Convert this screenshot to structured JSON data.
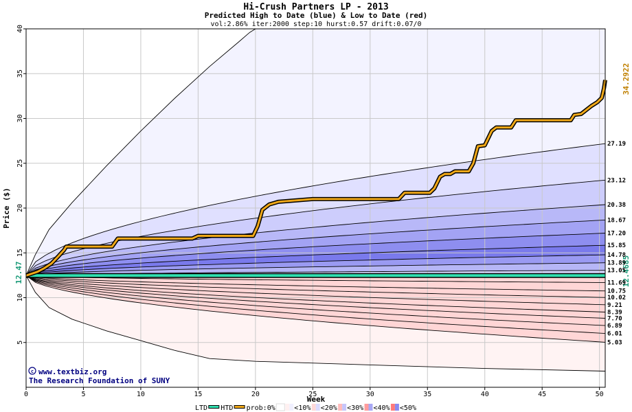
{
  "chart_data": {
    "type": "area",
    "title": "Hi-Crush Partners LP - 2013",
    "subtitle": "Predicted High to Date (blue) &  Low to Date (red)",
    "params": "vol:2.86% iter:2000 step:10 hurst:0.57 drift:0.07/0",
    "xlabel": "Week",
    "ylabel": "Price ($)",
    "xlim": [
      0,
      50.5
    ],
    "ylim": [
      0,
      40
    ],
    "x_ticks": [
      0,
      5,
      10,
      15,
      20,
      25,
      30,
      35,
      40,
      45,
      50
    ],
    "y_ticks": [
      5,
      10,
      15,
      20,
      25,
      30,
      35,
      40
    ],
    "grid": true,
    "start_price": 12.47,
    "start_label": "12.47",
    "end_htd_label": "34.2922",
    "end_ltd_label": "12.4685",
    "high_band_labels": [
      "27.19",
      "23.12",
      "20.38",
      "18.67",
      "17.20",
      "15.85",
      "14.78",
      "13.89",
      "13.05"
    ],
    "low_band_labels": [
      "11.69",
      "10.75",
      "10.02",
      "9.21",
      "8.39",
      "7.70",
      "6.89",
      "6.01",
      "5.03"
    ],
    "high_curves_end": [
      27.19,
      23.12,
      20.38,
      18.67,
      17.2,
      15.85,
      14.78,
      13.89,
      13.05
    ],
    "low_curves_end": [
      11.69,
      10.75,
      10.02,
      9.21,
      8.39,
      7.7,
      6.89,
      6.01,
      5.03
    ],
    "outer_high_end": 40,
    "outer_low_end": 1.8,
    "htd_series": {
      "name": "HTD",
      "x": [
        0,
        1,
        1.6,
        2.2,
        2.8,
        3.3,
        3.5,
        7.5,
        8,
        14.5,
        15,
        19.8,
        20.2,
        20.6,
        21.2,
        22,
        25,
        32.5,
        33,
        35.2,
        35.6,
        36.1,
        36.5,
        37,
        37.4,
        38.6,
        39,
        39.4,
        40,
        40.6,
        41,
        42.3,
        42.7,
        47.5,
        47.8,
        48.4,
        48.8,
        49.3,
        49.8,
        50.2,
        50.4,
        50.5
      ],
      "y": [
        12.47,
        12.9,
        13.3,
        13.8,
        14.6,
        15.3,
        15.7,
        15.7,
        16.6,
        16.6,
        16.9,
        16.9,
        18.0,
        19.8,
        20.4,
        20.7,
        21.0,
        21.0,
        21.7,
        21.7,
        22.2,
        23.5,
        23.8,
        23.8,
        24.1,
        24.1,
        25.0,
        26.9,
        27.0,
        28.6,
        29.0,
        29.0,
        29.8,
        29.8,
        30.4,
        30.5,
        30.9,
        31.4,
        31.8,
        32.3,
        33.4,
        34.29
      ]
    },
    "ltd_series": {
      "name": "LTD",
      "x": [
        0,
        50.5
      ],
      "y": [
        12.47,
        12.4685
      ]
    },
    "colors": {
      "htd": "#f0a818",
      "ltd": "#30e0b0",
      "band_blue": [
        "#f3f3ff",
        "#e0e0ff",
        "#cdcdfc",
        "#b8b8f8",
        "#a3a3f4",
        "#8e8ef0",
        "#7a7aec",
        "#9a9af2",
        "#b6b6f6",
        "#d4d4fb"
      ],
      "band_red": [
        "#fff3f3",
        "#ffe2e2",
        "#ffd0d0",
        "#ffbcbc",
        "#ffa8a8",
        "#ff9494",
        "#ff8080",
        "#ff9c9c",
        "#ffb8b8",
        "#ffd6d6"
      ],
      "grid": "#c8c8c8",
      "label_orange": "#c08000",
      "label_green": "#1a9a78"
    },
    "legend": {
      "placement": "bottom",
      "items": [
        "LTD",
        "HTD",
        "prob:0%",
        "<10%",
        "<20%",
        "<30%",
        "<40%",
        "<50%"
      ]
    }
  },
  "watermark": {
    "line1": "www.textbiz.org",
    "line2": "The Research Foundation of SUNY"
  }
}
